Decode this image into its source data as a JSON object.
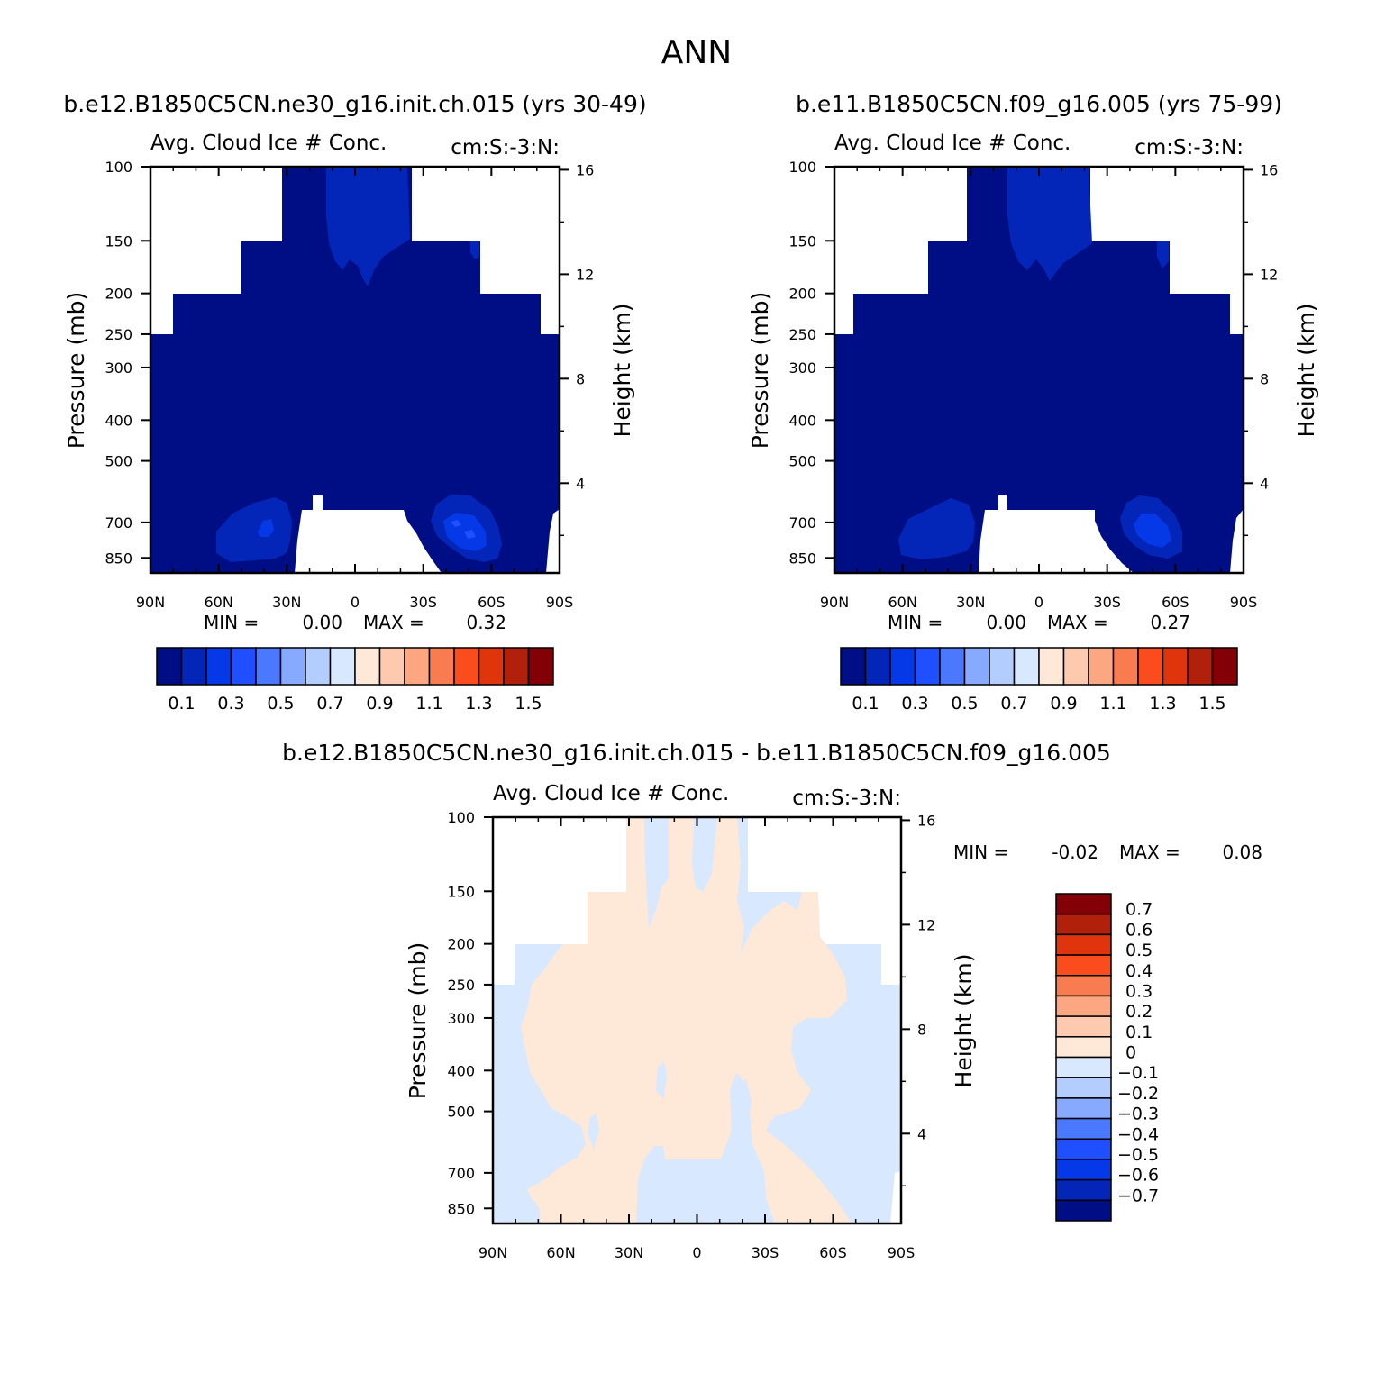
{
  "title": "ANN",
  "colors": {
    "abs_levels": [
      "#000e85",
      "#0326b8",
      "#0538e6",
      "#1f4fff",
      "#4a78ff",
      "#87a9ff",
      "#b3cdff",
      "#d8e8fe",
      "#fee8d8",
      "#fdcab0",
      "#fca682",
      "#f97c50",
      "#fa4c1c",
      "#e0350c",
      "#b0200b",
      "#820006"
    ],
    "diff_levels": [
      "#000e85",
      "#0326b8",
      "#0538e6",
      "#1f4fff",
      "#4a78ff",
      "#87a9ff",
      "#b3cdff",
      "#d8e8fe",
      "#fee8d8",
      "#fdcab0",
      "#fca682",
      "#f97c50",
      "#fa4c1c",
      "#e0350c",
      "#b0200b",
      "#820006"
    ]
  },
  "chart_data": [
    {
      "type": "contour",
      "case_title": "b.e12.B1850C5CN.ne30_g16.init.ch.015 (yrs 30-49)",
      "plot_title": "Avg. Cloud Ice # Conc.",
      "units": "cm:S:-3:N:",
      "xlabel": "",
      "ylabel": "Pressure (mb)",
      "ylabel_right": "Height (km)",
      "x_ticks": [
        "90N",
        "60N",
        "30N",
        "0",
        "30S",
        "60S",
        "90S"
      ],
      "y_ticks": [
        100,
        150,
        200,
        250,
        300,
        400,
        500,
        700,
        850
      ],
      "y_right_ticks": [
        16,
        12,
        8,
        4
      ],
      "stats": {
        "min_label": "MIN =",
        "min": "0.00",
        "max_label": "MAX =",
        "max": "0.32"
      },
      "colorbar_labels": [
        "0.1",
        "0.3",
        "0.5",
        "0.7",
        "0.9",
        "1.1",
        "1.3",
        "1.5"
      ],
      "contour_levels": [
        0.1,
        0.2,
        0.3,
        0.4,
        0.5,
        0.6,
        0.7,
        0.8,
        0.9,
        1.0,
        1.1,
        1.2,
        1.3,
        1.4,
        1.5
      ]
    },
    {
      "type": "contour",
      "case_title": "b.e11.B1850C5CN.f09_g16.005 (yrs 75-99)",
      "plot_title": "Avg. Cloud Ice # Conc.",
      "units": "cm:S:-3:N:",
      "xlabel": "",
      "ylabel": "Pressure (mb)",
      "ylabel_right": "Height (km)",
      "x_ticks": [
        "90N",
        "60N",
        "30N",
        "0",
        "30S",
        "60S",
        "90S"
      ],
      "y_ticks": [
        100,
        150,
        200,
        250,
        300,
        400,
        500,
        700,
        850
      ],
      "y_right_ticks": [
        16,
        12,
        8,
        4
      ],
      "stats": {
        "min_label": "MIN =",
        "min": "0.00",
        "max_label": "MAX =",
        "max": "0.27"
      },
      "colorbar_labels": [
        "0.1",
        "0.3",
        "0.5",
        "0.7",
        "0.9",
        "1.1",
        "1.3",
        "1.5"
      ],
      "contour_levels": [
        0.1,
        0.2,
        0.3,
        0.4,
        0.5,
        0.6,
        0.7,
        0.8,
        0.9,
        1.0,
        1.1,
        1.2,
        1.3,
        1.4,
        1.5
      ]
    },
    {
      "type": "contour",
      "case_title": "b.e12.B1850C5CN.ne30_g16.init.ch.015 - b.e11.B1850C5CN.f09_g16.005",
      "plot_title": "Avg. Cloud Ice # Conc.",
      "units": "cm:S:-3:N:",
      "xlabel": "",
      "ylabel": "Pressure (mb)",
      "ylabel_right": "Height (km)",
      "x_ticks": [
        "90N",
        "60N",
        "30N",
        "0",
        "30S",
        "60S",
        "90S"
      ],
      "y_ticks": [
        100,
        150,
        200,
        250,
        300,
        400,
        500,
        700,
        850
      ],
      "y_right_ticks": [
        16,
        12,
        8,
        4
      ],
      "stats": {
        "min_label": "MIN =",
        "min": "-0.02",
        "max_label": "MAX =",
        "max": "0.08"
      },
      "colorbar_labels": [
        "0.7",
        "0.6",
        "0.5",
        "0.4",
        "0.3",
        "0.2",
        "0.1",
        "0",
        "-0.1",
        "-0.2",
        "-0.3",
        "-0.4",
        "-0.5",
        "-0.6",
        "-0.7"
      ],
      "contour_levels": [
        -0.7,
        -0.6,
        -0.5,
        -0.4,
        -0.3,
        -0.2,
        -0.1,
        0,
        0.1,
        0.2,
        0.3,
        0.4,
        0.5,
        0.6,
        0.7
      ]
    }
  ]
}
